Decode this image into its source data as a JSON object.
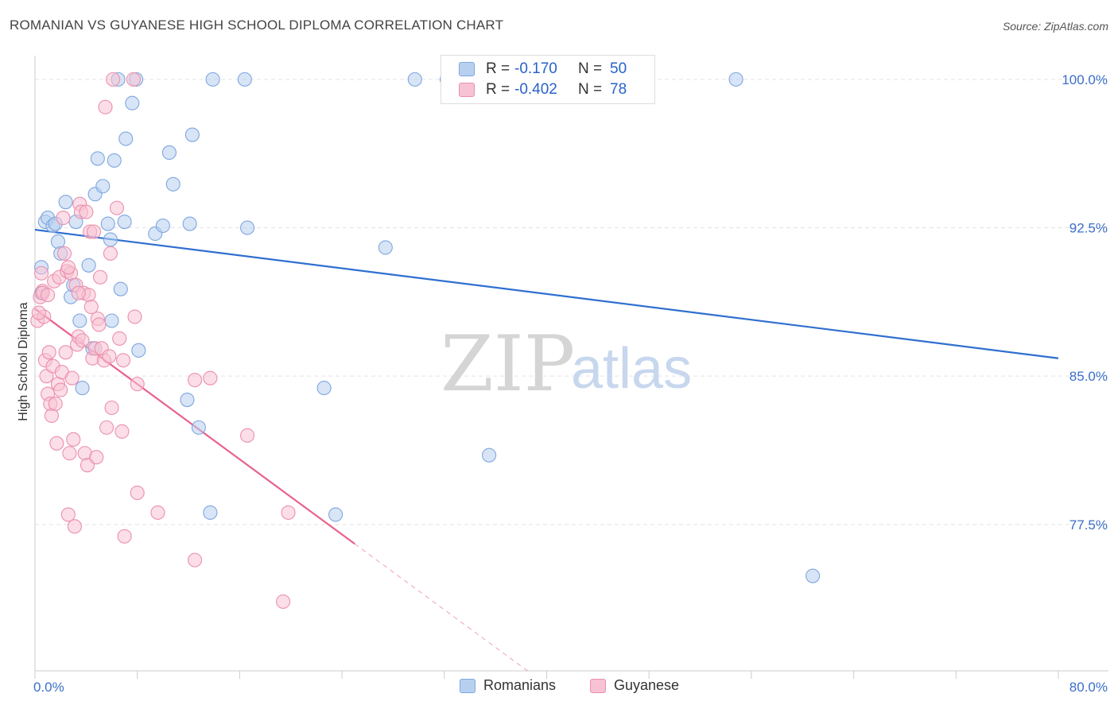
{
  "header": {
    "title": "ROMANIAN VS GUYANESE HIGH SCHOOL DIPLOMA CORRELATION CHART",
    "source": "Source: ZipAtlas.com"
  },
  "watermark": {
    "zip": "ZIP",
    "atlas": "atlas"
  },
  "legend": {
    "rows": [
      {
        "r_label": "R =",
        "r_value": "-0.170",
        "n_label": "N =",
        "n_value": "50"
      },
      {
        "r_label": "R =",
        "r_value": "-0.402",
        "n_label": "N =",
        "n_value": "78"
      }
    ]
  },
  "colors": {
    "romanians_fill": "#b8d0f0",
    "romanians_stroke": "#7ea6df",
    "romanians_line": "#2f6fd0",
    "guyanese_fill": "#f7c2d3",
    "guyanese_stroke": "#ec8fad",
    "guyanese_line": "#e8628e",
    "tick_text": "#3b6fc9"
  },
  "chart_data": {
    "type": "scatter",
    "title": "ROMANIAN VS GUYANESE HIGH SCHOOL DIPLOMA CORRELATION CHART",
    "xlabel": "",
    "ylabel": "High School Diploma",
    "xlim": [
      0,
      80
    ],
    "ylim": [
      70.1,
      101.2
    ],
    "x_tick_labels": [
      "0.0%",
      "80.0%"
    ],
    "y_ticks": [
      77.5,
      85.0,
      92.5,
      100.0
    ],
    "y_tick_labels": [
      "77.5%",
      "85.0%",
      "92.5%",
      "100.0%"
    ],
    "grid": true,
    "series": [
      {
        "name": "Romanians",
        "r": -0.17,
        "n": 50,
        "trend": {
          "x": [
            0,
            80
          ],
          "y": [
            92.4,
            85.9
          ],
          "dashed_from_x": null
        },
        "points": [
          [
            0.5,
            90.5
          ],
          [
            0.5,
            89.2
          ],
          [
            0.8,
            92.8
          ],
          [
            1.0,
            93.0
          ],
          [
            1.4,
            92.6
          ],
          [
            1.6,
            92.7
          ],
          [
            1.8,
            91.8
          ],
          [
            2.0,
            91.2
          ],
          [
            2.4,
            93.8
          ],
          [
            2.8,
            89.0
          ],
          [
            3.0,
            89.6
          ],
          [
            3.2,
            92.8
          ],
          [
            3.5,
            87.8
          ],
          [
            3.7,
            84.4
          ],
          [
            4.2,
            90.6
          ],
          [
            4.5,
            86.4
          ],
          [
            4.7,
            94.2
          ],
          [
            4.9,
            96.0
          ],
          [
            5.3,
            94.6
          ],
          [
            5.7,
            92.7
          ],
          [
            5.9,
            91.9
          ],
          [
            6.2,
            95.9
          ],
          [
            6.5,
            100.0
          ],
          [
            6.7,
            89.4
          ],
          [
            7.0,
            92.8
          ],
          [
            7.1,
            97.0
          ],
          [
            7.6,
            98.8
          ],
          [
            7.9,
            100.0
          ],
          [
            8.1,
            86.3
          ],
          [
            9.4,
            92.2
          ],
          [
            10.0,
            92.6
          ],
          [
            10.5,
            96.3
          ],
          [
            10.8,
            94.7
          ],
          [
            11.9,
            83.8
          ],
          [
            12.1,
            92.7
          ],
          [
            12.3,
            97.2
          ],
          [
            12.8,
            82.4
          ],
          [
            13.7,
            78.1
          ],
          [
            13.9,
            100.0
          ],
          [
            16.4,
            100.0
          ],
          [
            16.6,
            92.5
          ],
          [
            22.6,
            84.4
          ],
          [
            23.5,
            78.0
          ],
          [
            27.4,
            91.5
          ],
          [
            29.7,
            100.0
          ],
          [
            32.2,
            100.0
          ],
          [
            35.5,
            81.0
          ],
          [
            54.8,
            100.0
          ],
          [
            60.8,
            74.9
          ],
          [
            6.0,
            87.8
          ]
        ]
      },
      {
        "name": "Guyanese",
        "r": -0.402,
        "n": 78,
        "trend": {
          "x": [
            0,
            38.5
          ],
          "y": [
            88.4,
            70.1
          ],
          "dashed_from_x": 25.0
        },
        "points": [
          [
            0.2,
            87.8
          ],
          [
            0.4,
            89.0
          ],
          [
            0.5,
            90.2
          ],
          [
            0.6,
            89.3
          ],
          [
            0.7,
            88.0
          ],
          [
            0.8,
            85.8
          ],
          [
            0.9,
            85.0
          ],
          [
            1.0,
            84.1
          ],
          [
            1.1,
            86.2
          ],
          [
            1.2,
            83.6
          ],
          [
            1.3,
            83.0
          ],
          [
            1.4,
            85.5
          ],
          [
            1.5,
            89.8
          ],
          [
            1.6,
            83.6
          ],
          [
            1.7,
            81.6
          ],
          [
            1.8,
            84.6
          ],
          [
            1.9,
            90.0
          ],
          [
            2.0,
            84.3
          ],
          [
            2.1,
            85.2
          ],
          [
            2.2,
            93.0
          ],
          [
            2.3,
            91.2
          ],
          [
            2.4,
            86.2
          ],
          [
            2.5,
            90.3
          ],
          [
            2.6,
            78.0
          ],
          [
            2.7,
            81.1
          ],
          [
            2.8,
            90.2
          ],
          [
            2.9,
            84.9
          ],
          [
            3.0,
            81.8
          ],
          [
            3.1,
            77.4
          ],
          [
            3.2,
            89.6
          ],
          [
            3.3,
            86.6
          ],
          [
            3.4,
            87.0
          ],
          [
            3.5,
            93.7
          ],
          [
            3.6,
            93.3
          ],
          [
            3.7,
            86.8
          ],
          [
            3.8,
            89.2
          ],
          [
            3.9,
            81.1
          ],
          [
            4.0,
            93.3
          ],
          [
            4.1,
            80.5
          ],
          [
            4.2,
            89.1
          ],
          [
            4.3,
            92.3
          ],
          [
            4.4,
            88.5
          ],
          [
            4.5,
            85.9
          ],
          [
            4.6,
            92.3
          ],
          [
            4.7,
            86.4
          ],
          [
            4.8,
            80.9
          ],
          [
            4.9,
            87.9
          ],
          [
            5.0,
            87.6
          ],
          [
            5.2,
            86.4
          ],
          [
            5.4,
            85.8
          ],
          [
            5.5,
            98.6
          ],
          [
            5.6,
            82.4
          ],
          [
            5.8,
            86.0
          ],
          [
            5.9,
            91.2
          ],
          [
            6.0,
            83.4
          ],
          [
            6.1,
            100.0
          ],
          [
            6.4,
            93.5
          ],
          [
            6.6,
            86.9
          ],
          [
            6.8,
            82.2
          ],
          [
            6.9,
            85.8
          ],
          [
            7.0,
            76.9
          ],
          [
            7.7,
            100.0
          ],
          [
            7.8,
            88.0
          ],
          [
            8.0,
            84.6
          ],
          [
            8.0,
            79.1
          ],
          [
            9.6,
            78.1
          ],
          [
            12.5,
            84.8
          ],
          [
            12.5,
            75.7
          ],
          [
            13.7,
            84.9
          ],
          [
            16.6,
            82.0
          ],
          [
            19.8,
            78.1
          ],
          [
            19.4,
            73.6
          ],
          [
            0.3,
            88.2
          ],
          [
            0.6,
            89.2
          ],
          [
            1.0,
            89.1
          ],
          [
            2.6,
            90.5
          ],
          [
            3.4,
            89.2
          ],
          [
            5.1,
            90.0
          ]
        ]
      }
    ]
  },
  "bottom_legend": {
    "items": [
      {
        "label": "Romanians"
      },
      {
        "label": "Guyanese"
      }
    ]
  }
}
